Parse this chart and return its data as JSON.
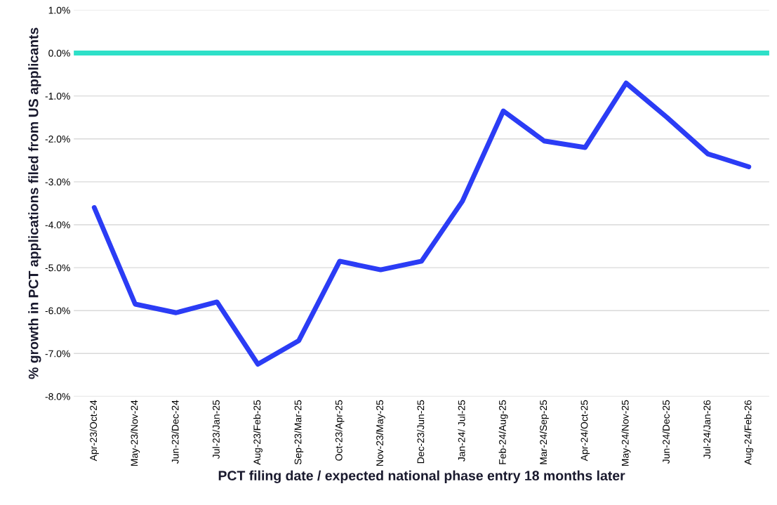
{
  "chart_data": {
    "type": "line",
    "xlabel": "PCT filing date / expected national phase entry 18 months later",
    "ylabel": "% growth in PCT applications filed from US applicants",
    "categories": [
      "Apr-23/Oct-24",
      "May-23/Nov-24",
      "Jun-23/Dec-24",
      "Jul-23/Jan-25",
      "Aug-23/Feb-25",
      "Sep-23/Mar-25",
      "Oct-23/Apr-25",
      "Nov-23/May-25",
      "Dec-23/Jun-25",
      "Jan-24/ Jul-25",
      "Feb-24/Aug-25",
      "Mar-24/Sep-25",
      "Apr-24/Oct-25",
      "May-24/Nov-25",
      "Jun-24/Dec-25",
      "Jul-24/Jan-26",
      "Aug-24/Feb-26"
    ],
    "series": [
      {
        "color": "#2b3cf5",
        "values": [
          -3.6,
          -5.85,
          -6.05,
          -5.8,
          -7.25,
          -6.7,
          -4.85,
          -5.05,
          -4.85,
          -3.45,
          -1.35,
          -2.05,
          -2.2,
          -0.7,
          -1.5,
          -2.35,
          -2.65
        ]
      }
    ],
    "ylim": [
      -8.0,
      1.0
    ],
    "yticks": [
      {
        "value": -8,
        "label": "-8.0%"
      },
      {
        "value": -7,
        "label": "-7.0%"
      },
      {
        "value": -6,
        "label": "-6.0%"
      },
      {
        "value": -5,
        "label": "-5.0%"
      },
      {
        "value": -4,
        "label": "-4.0%"
      },
      {
        "value": -3,
        "label": "-3.0%"
      },
      {
        "value": -2,
        "label": "-2.0%"
      },
      {
        "value": -1,
        "label": "-1.0%"
      },
      {
        "value": 0,
        "label": "0.0%"
      },
      {
        "value": 1,
        "label": "1.0%"
      }
    ],
    "ref_lines": [
      {
        "axis": "y",
        "value": 0,
        "color": "#2ee0c8"
      }
    ],
    "grid": "y",
    "marker": "none",
    "line_style": "solid"
  }
}
